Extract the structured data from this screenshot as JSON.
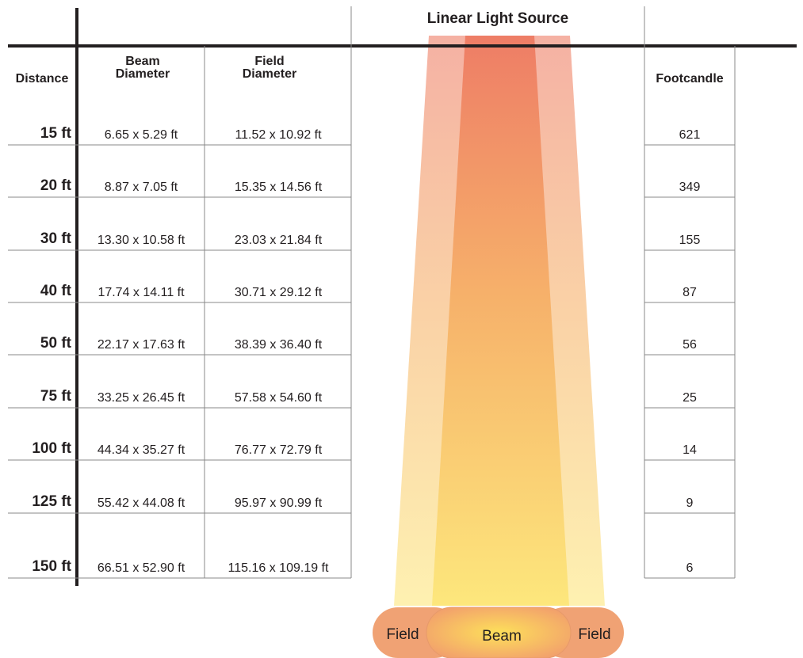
{
  "header": {
    "title": "Linear Light Source"
  },
  "table": {
    "columns": [
      "Distance",
      "Beam Diameter",
      "Field Diameter",
      "Footcandle"
    ],
    "rows": [
      [
        "15 ft",
        "6.65 x 5.29 ft",
        "11.52 x 10.92 ft",
        621
      ],
      [
        "20 ft",
        "8.87 x 7.05 ft",
        "15.35 x 14.56 ft",
        349
      ],
      [
        "30 ft",
        "13.30 x 10.58 ft",
        "23.03 x 21.84 ft",
        155
      ],
      [
        "40 ft",
        "17.74 x 14.11 ft",
        "30.71 x 29.12 ft",
        87
      ],
      [
        "50 ft",
        "22.17 x 17.63 ft",
        "38.39 x 36.40 ft",
        56
      ],
      [
        "75 ft",
        "33.25 x 26.45 ft",
        "57.58 x 54.60 ft",
        25
      ],
      [
        "100 ft",
        "44.34 x 35.27 ft",
        "76.77 x 72.79 ft",
        14
      ],
      [
        "125 ft",
        "55.42 x 44.08 ft",
        "95.97 x 90.99 ft",
        9
      ],
      [
        "150 ft",
        "66.51 x 52.90 ft",
        "115.16 x 109.19 ft",
        6
      ]
    ]
  },
  "legend": {
    "labels": [
      "Field",
      "Beam",
      "Field"
    ]
  }
}
